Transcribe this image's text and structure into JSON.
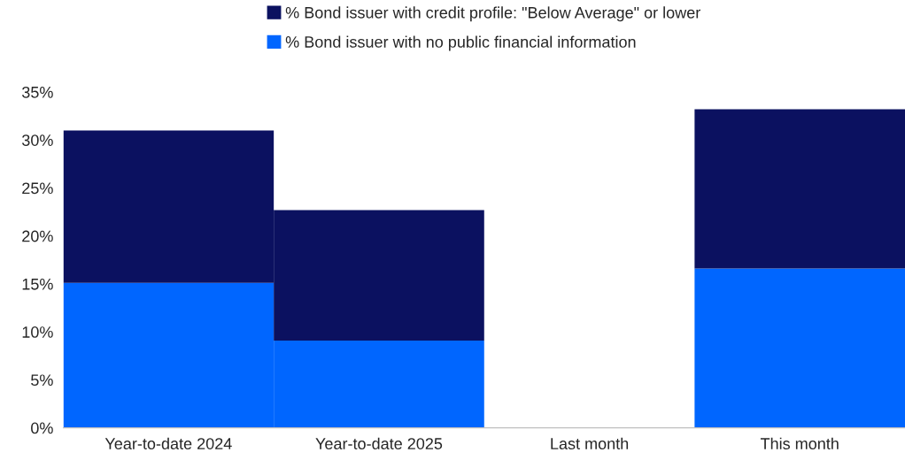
{
  "chart_data": {
    "type": "bar",
    "stacked": true,
    "categories": [
      "Year-to-date 2024",
      "Year-to-date 2025",
      "Last month",
      "This month"
    ],
    "series": [
      {
        "name": "% Bond issuer with no public financial information",
        "color": "#0066ff",
        "values": [
          15.1,
          9.1,
          null,
          16.6
        ]
      },
      {
        "name": "% Bond issuer with credit profile: \"Below Average\" or lower",
        "color": "#0b1160",
        "values": [
          15.9,
          13.6,
          null,
          16.6
        ]
      }
    ],
    "ylim": [
      0,
      35
    ],
    "yticks": [
      {
        "value": 0,
        "label": "0%"
      },
      {
        "value": 5,
        "label": "5%"
      },
      {
        "value": 10,
        "label": "10%"
      },
      {
        "value": 15,
        "label": "15%"
      },
      {
        "value": 20,
        "label": "20%"
      },
      {
        "value": 25,
        "label": "25%"
      },
      {
        "value": 30,
        "label": "30%"
      },
      {
        "value": 35,
        "label": "35%"
      }
    ],
    "grid": false,
    "legend": "top"
  }
}
